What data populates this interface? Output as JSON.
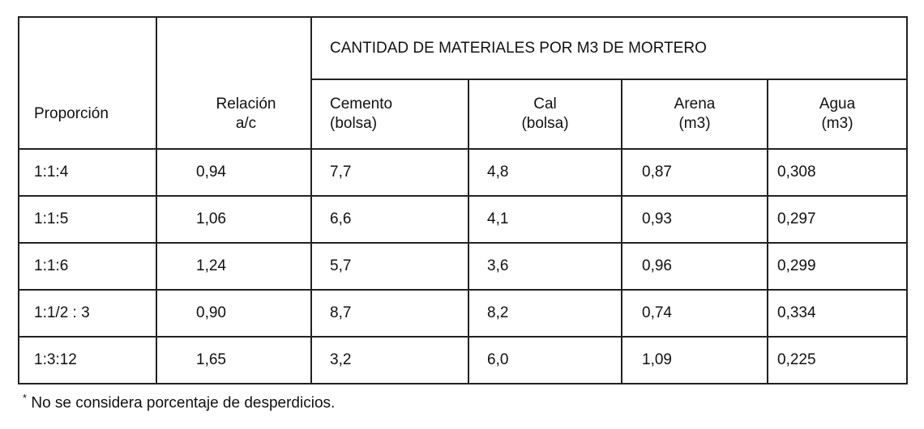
{
  "table": {
    "group_header": "CANTIDAD DE MATERIALES POR M3 DE MORTERO",
    "columns": [
      [
        "Proporción"
      ],
      [
        "Relación",
        "a/c"
      ],
      [
        "Cemento",
        "(bolsa)"
      ],
      [
        "Cal",
        "(bolsa)"
      ],
      [
        "Arena",
        "(m3)"
      ],
      [
        "Agua",
        "(m3)"
      ]
    ],
    "rows": [
      [
        "1:1:4",
        "0,94",
        "7,7",
        "4,8",
        "0,87",
        "0,308"
      ],
      [
        "1:1:5",
        "1,06",
        "6,6",
        "4,1",
        "0,93",
        "0,297"
      ],
      [
        "1:1:6",
        "1,24",
        "5,7",
        "3,6",
        "0,96",
        "0,299"
      ],
      [
        "1:1/2 : 3",
        "0,90",
        "8,7",
        "8,2",
        "0,74",
        "0,334"
      ],
      [
        "1:3:12",
        "1,65",
        "3,2",
        "6,0",
        "1,09",
        "0,225"
      ]
    ]
  },
  "footnote": {
    "marker": "*",
    "text": "No se considera porcentaje de desperdicios."
  }
}
